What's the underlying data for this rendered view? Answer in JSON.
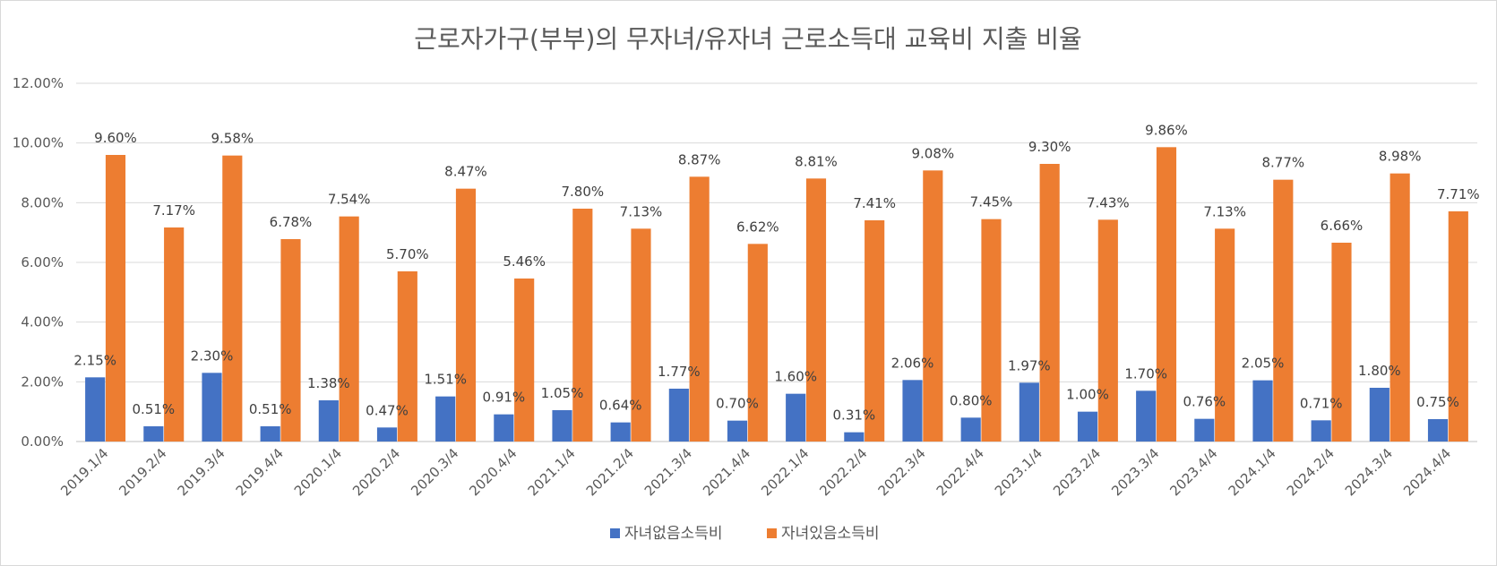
{
  "chart_data": {
    "type": "bar",
    "title": "근로자가구(부부)의 무자녀/유자녀 근로소득대 교육비 지출 비율",
    "xlabel": "",
    "ylabel": "",
    "ylim": [
      0,
      12
    ],
    "yticks": [
      "0.00%",
      "2.00%",
      "4.00%",
      "6.00%",
      "8.00%",
      "10.00%",
      "12.00%"
    ],
    "grid": true,
    "legend_position": "bottom",
    "categories": [
      "2019.1/4",
      "2019.2/4",
      "2019.3/4",
      "2019.4/4",
      "2020.1/4",
      "2020.2/4",
      "2020.3/4",
      "2020.4/4",
      "2021.1/4",
      "2021.2/4",
      "2021.3/4",
      "2021.4/4",
      "2022.1/4",
      "2022.2/4",
      "2022.3/4",
      "2022.4/4",
      "2023.1/4",
      "2023.2/4",
      "2023.3/4",
      "2023.4/4",
      "2024.1/4",
      "2024.2/4",
      "2024.3/4",
      "2024.4/4"
    ],
    "series": [
      {
        "name": "자녀없음소득비",
        "color": "#4472C4",
        "values": [
          2.15,
          0.51,
          2.3,
          0.51,
          1.38,
          0.47,
          1.51,
          0.91,
          1.05,
          0.64,
          1.77,
          0.7,
          1.6,
          0.31,
          2.06,
          0.8,
          1.97,
          1.0,
          1.7,
          0.76,
          2.05,
          0.71,
          1.8,
          0.75
        ],
        "labels": [
          "2.15%",
          "0.51%",
          "2.30%",
          "0.51%",
          "1.38%",
          "0.47%",
          "1.51%",
          "0.91%",
          "1.05%",
          "0.64%",
          "1.77%",
          "0.70%",
          "1.60%",
          "0.31%",
          "2.06%",
          "0.80%",
          "1.97%",
          "1.00%",
          "1.70%",
          "0.76%",
          "2.05%",
          "0.71%",
          "1.80%",
          "0.75%"
        ]
      },
      {
        "name": "자녀있음소득비",
        "color": "#ED7D31",
        "values": [
          9.6,
          7.17,
          9.58,
          6.78,
          7.54,
          5.7,
          8.47,
          5.46,
          7.8,
          7.13,
          8.87,
          6.62,
          8.81,
          7.41,
          9.08,
          7.45,
          9.3,
          7.43,
          9.86,
          7.13,
          8.77,
          6.66,
          8.98,
          7.71
        ],
        "labels": [
          "9.60%",
          "7.17%",
          "9.58%",
          "6.78%",
          "7.54%",
          "5.70%",
          "8.47%",
          "5.46%",
          "7.80%",
          "7.13%",
          "8.87%",
          "6.62%",
          "8.81%",
          "7.41%",
          "9.08%",
          "7.45%",
          "9.30%",
          "7.43%",
          "9.86%",
          "7.13%",
          "8.77%",
          "6.66%",
          "8.98%",
          "7.71%"
        ]
      }
    ]
  }
}
